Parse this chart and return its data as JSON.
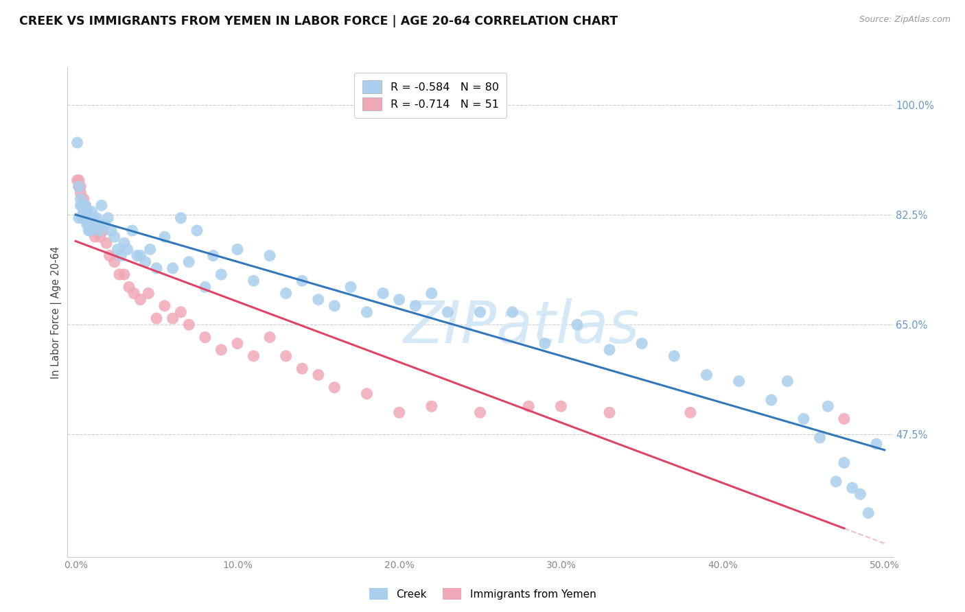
{
  "title": "CREEK VS IMMIGRANTS FROM YEMEN IN LABOR FORCE | AGE 20-64 CORRELATION CHART",
  "source": "Source: ZipAtlas.com",
  "ylabel": "In Labor Force | Age 20-64",
  "xlim": [
    -0.005,
    0.505
  ],
  "ylim": [
    0.28,
    1.06
  ],
  "yticks": [
    0.475,
    0.65,
    0.825,
    1.0
  ],
  "ytick_labels": [
    "47.5%",
    "65.0%",
    "82.5%",
    "100.0%"
  ],
  "xticks": [
    0.0,
    0.1,
    0.2,
    0.3,
    0.4,
    0.5
  ],
  "xtick_labels": [
    "0.0%",
    "10.0%",
    "20.0%",
    "30.0%",
    "40.0%",
    "50.0%"
  ],
  "legend_label_1": "R = -0.584   N = 80",
  "legend_label_2": "R = -0.714   N = 51",
  "creek_color": "#aacfee",
  "yemen_color": "#f0a8b8",
  "creek_line_color": "#3377bb",
  "yemen_line_color": "#dd4466",
  "watermark_text": "ZIPatlas",
  "watermark_color": "#d5e8f5",
  "grid_color": "#cccccc",
  "bg_color": "#ffffff",
  "right_tick_color": "#6699cc",
  "bottom_tick_color": "#888888",
  "creek_x": [
    0.001,
    0.002,
    0.002,
    0.003,
    0.003,
    0.004,
    0.004,
    0.005,
    0.005,
    0.006,
    0.006,
    0.007,
    0.007,
    0.008,
    0.008,
    0.009,
    0.009,
    0.01,
    0.01,
    0.011,
    0.012,
    0.013,
    0.015,
    0.016,
    0.018,
    0.02,
    0.022,
    0.024,
    0.026,
    0.028,
    0.03,
    0.032,
    0.035,
    0.038,
    0.04,
    0.043,
    0.046,
    0.05,
    0.055,
    0.06,
    0.065,
    0.07,
    0.075,
    0.08,
    0.085,
    0.09,
    0.1,
    0.11,
    0.12,
    0.13,
    0.14,
    0.15,
    0.16,
    0.17,
    0.18,
    0.19,
    0.2,
    0.21,
    0.22,
    0.23,
    0.25,
    0.27,
    0.29,
    0.31,
    0.33,
    0.35,
    0.37,
    0.39,
    0.41,
    0.43,
    0.44,
    0.45,
    0.46,
    0.465,
    0.47,
    0.475,
    0.48,
    0.485,
    0.49,
    0.495
  ],
  "creek_y": [
    0.94,
    0.87,
    0.82,
    0.85,
    0.84,
    0.84,
    0.82,
    0.83,
    0.82,
    0.84,
    0.82,
    0.83,
    0.81,
    0.82,
    0.8,
    0.82,
    0.8,
    0.83,
    0.81,
    0.82,
    0.81,
    0.82,
    0.8,
    0.84,
    0.81,
    0.82,
    0.8,
    0.79,
    0.77,
    0.76,
    0.78,
    0.77,
    0.8,
    0.76,
    0.76,
    0.75,
    0.77,
    0.74,
    0.79,
    0.74,
    0.82,
    0.75,
    0.8,
    0.71,
    0.76,
    0.73,
    0.77,
    0.72,
    0.76,
    0.7,
    0.72,
    0.69,
    0.68,
    0.71,
    0.67,
    0.7,
    0.69,
    0.68,
    0.7,
    0.67,
    0.67,
    0.67,
    0.62,
    0.65,
    0.61,
    0.62,
    0.6,
    0.57,
    0.56,
    0.53,
    0.56,
    0.5,
    0.47,
    0.52,
    0.4,
    0.43,
    0.39,
    0.38,
    0.35,
    0.46
  ],
  "yemen_x": [
    0.001,
    0.002,
    0.002,
    0.003,
    0.003,
    0.004,
    0.005,
    0.005,
    0.006,
    0.006,
    0.007,
    0.008,
    0.009,
    0.01,
    0.011,
    0.012,
    0.013,
    0.015,
    0.017,
    0.019,
    0.021,
    0.024,
    0.027,
    0.03,
    0.033,
    0.036,
    0.04,
    0.045,
    0.05,
    0.055,
    0.06,
    0.065,
    0.07,
    0.08,
    0.09,
    0.1,
    0.11,
    0.12,
    0.13,
    0.14,
    0.15,
    0.16,
    0.18,
    0.2,
    0.22,
    0.25,
    0.28,
    0.3,
    0.33,
    0.38,
    0.475
  ],
  "yemen_y": [
    0.88,
    0.88,
    0.87,
    0.87,
    0.86,
    0.84,
    0.85,
    0.83,
    0.84,
    0.83,
    0.82,
    0.81,
    0.82,
    0.8,
    0.81,
    0.79,
    0.8,
    0.79,
    0.8,
    0.78,
    0.76,
    0.75,
    0.73,
    0.73,
    0.71,
    0.7,
    0.69,
    0.7,
    0.66,
    0.68,
    0.66,
    0.67,
    0.65,
    0.63,
    0.61,
    0.62,
    0.6,
    0.63,
    0.6,
    0.58,
    0.57,
    0.55,
    0.54,
    0.51,
    0.52,
    0.51,
    0.52,
    0.52,
    0.51,
    0.51,
    0.5
  ]
}
